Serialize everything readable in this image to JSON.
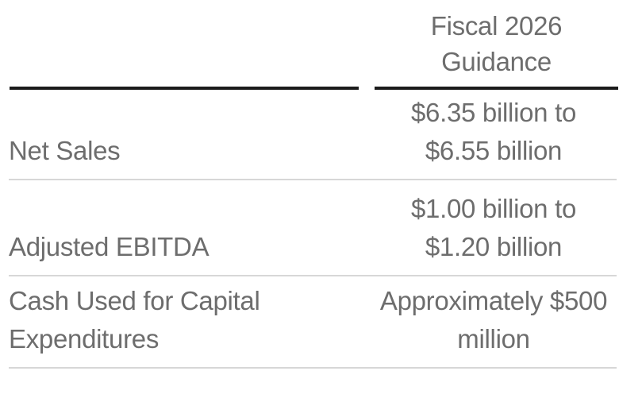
{
  "colors": {
    "background": "#ffffff",
    "text": "#6d6d6d",
    "heavy_rule": "#1b1b1b",
    "light_rule": "#d7d7d7"
  },
  "table": {
    "header_lines": [
      "Fiscal 2026",
      "Guidance"
    ],
    "rows": [
      {
        "label": "Net Sales",
        "value_lines": [
          "$6.35 billion to",
          "$6.55 billion"
        ]
      },
      {
        "label": "Adjusted EBITDA",
        "value_lines": [
          "$1.00 billion to",
          "$1.20 billion"
        ]
      },
      {
        "label": "Cash Used for Capital Expenditures",
        "value_lines": [
          "Approximately $500",
          "million"
        ]
      }
    ]
  }
}
